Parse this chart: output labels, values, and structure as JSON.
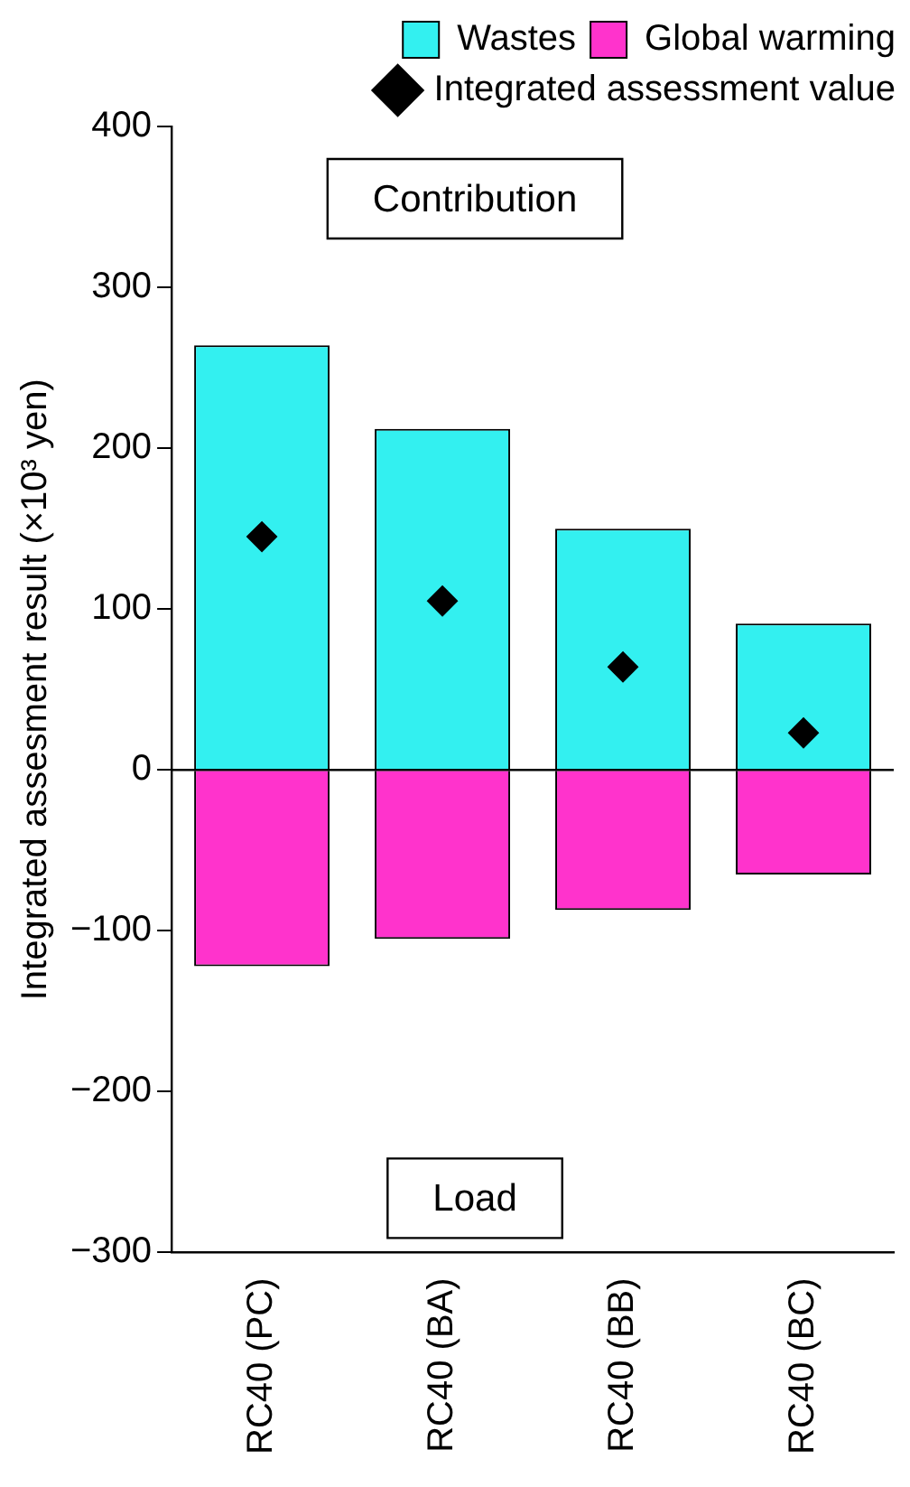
{
  "chart_data": {
    "type": "bar",
    "stacked": true,
    "ylabel": "Integrated assesment result (×10³ yen)",
    "categories": [
      "RC40 (PC)",
      "RC40 (BA)",
      "RC40 (BB)",
      "RC40 (BC)"
    ],
    "ylim": [
      -300,
      400
    ],
    "yticks": [
      -300,
      -200,
      -100,
      0,
      100,
      200,
      300,
      400
    ],
    "grid": false,
    "legend": "top right",
    "series": [
      {
        "name": "Wastes",
        "color": "#33f0f0",
        "values": [
          264,
          212,
          150,
          91
        ]
      },
      {
        "name": "Global warming",
        "color": "#ff33cc",
        "values": [
          -122,
          -105,
          -87,
          -65
        ]
      },
      {
        "name": "Integrated assessment value",
        "type": "scatter",
        "marker": "diamond",
        "color": "#000000",
        "x": [
          "RC40 (PC)",
          "RC40 (BA)",
          "RC40 (BB)",
          "RC40 (BC)"
        ],
        "values": [
          145,
          105,
          64,
          23
        ]
      }
    ],
    "ref_lines": [
      {
        "axis": "y",
        "value": 0,
        "color": "#000000",
        "line_style": "solid"
      }
    ],
    "annotations": [
      "Contribution",
      "Load"
    ]
  }
}
